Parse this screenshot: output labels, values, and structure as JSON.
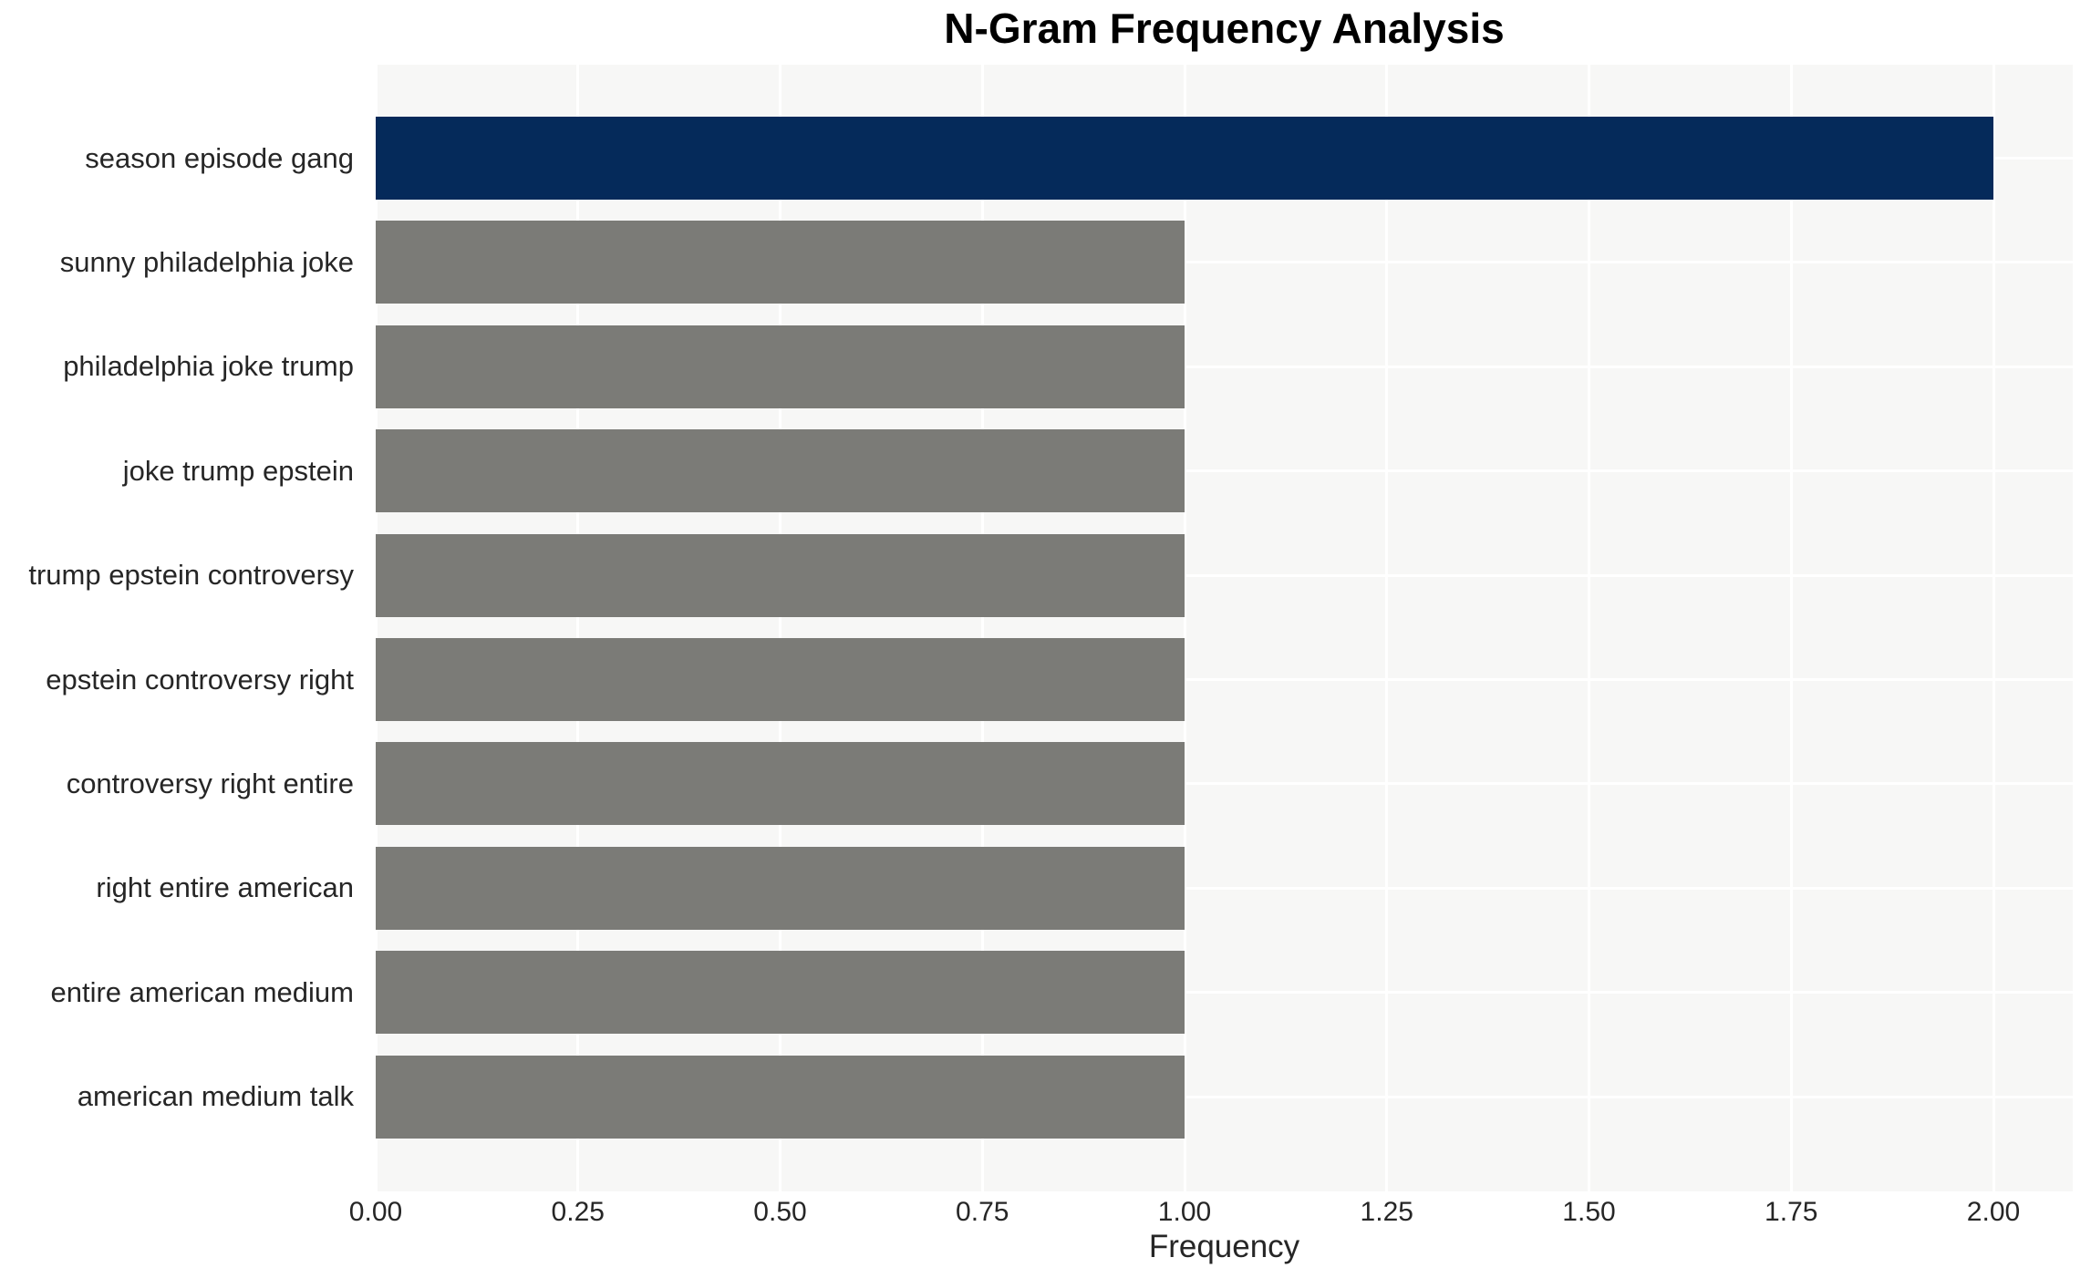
{
  "title": "N-Gram Frequency Analysis",
  "chart_data": {
    "type": "bar",
    "orientation": "horizontal",
    "title": "N-Gram Frequency Analysis",
    "categories": [
      "season episode gang",
      "sunny philadelphia joke",
      "philadelphia joke trump",
      "joke trump epstein",
      "trump epstein controversy",
      "epstein controversy right",
      "controversy right entire",
      "right entire american",
      "entire american medium",
      "american medium talk"
    ],
    "values": [
      2.0,
      1.0,
      1.0,
      1.0,
      1.0,
      1.0,
      1.0,
      1.0,
      1.0,
      1.0
    ],
    "bar_colors": [
      "#052a5a",
      "#7b7b77",
      "#7b7b77",
      "#7b7b77",
      "#7b7b77",
      "#7b7b77",
      "#7b7b77",
      "#7b7b77",
      "#7b7b77",
      "#7b7b77"
    ],
    "xlabel": "Frequency",
    "ylabel": "",
    "xlim": [
      0,
      2.1
    ],
    "xticks": [
      "0.00",
      "0.25",
      "0.50",
      "0.75",
      "1.00",
      "1.25",
      "1.50",
      "1.75",
      "2.00"
    ],
    "xtick_values": [
      0.0,
      0.25,
      0.5,
      0.75,
      1.0,
      1.25,
      1.5,
      1.75,
      2.0
    ],
    "grid": true,
    "gridline_color": "#ffffff",
    "legend": false,
    "colors": {
      "highlight_bar": "#052a5a",
      "default_bar": "#7b7b77",
      "plot_background": "#f7f7f6",
      "figure_background": "#ffffff",
      "text": "#262626",
      "title_text": "#000000"
    }
  }
}
